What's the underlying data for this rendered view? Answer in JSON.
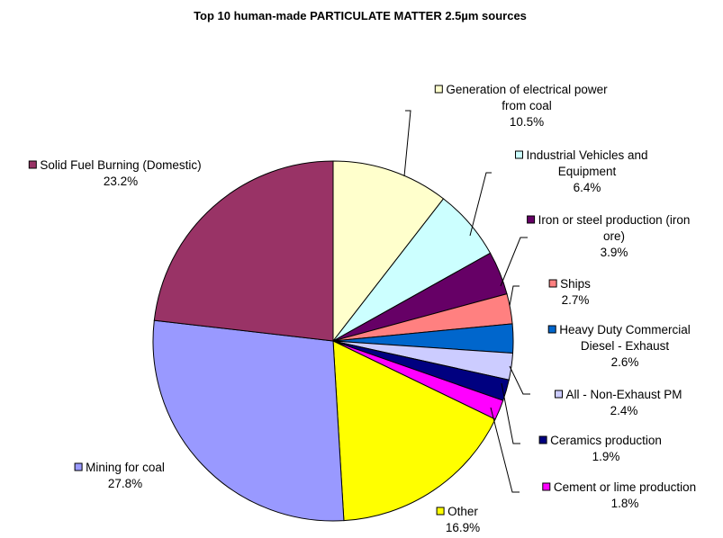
{
  "chart_data": {
    "type": "pie",
    "title": "Top 10 human-made PARTICULATE MATTER 2.5µm sources",
    "slices": [
      {
        "name": "Generation of electrical power from coal",
        "label_lines": [
          "Generation of electrical power",
          "from coal"
        ],
        "value": 10.5,
        "value_label": "10.5%",
        "color": "#FFFFCC"
      },
      {
        "name": "Industrial Vehicles and Equipment",
        "label_lines": [
          "Industrial Vehicles and",
          "Equipment"
        ],
        "value": 6.4,
        "value_label": "6.4%",
        "color": "#CCFFFF"
      },
      {
        "name": "Iron or steel production (iron ore)",
        "label_lines": [
          "Iron or steel production (iron",
          "ore)"
        ],
        "value": 3.9,
        "value_label": "3.9%",
        "color": "#660066"
      },
      {
        "name": "Ships",
        "label_lines": [
          "Ships"
        ],
        "value": 2.7,
        "value_label": "2.7%",
        "color": "#FF8080"
      },
      {
        "name": "Heavy Duty Commercial Diesel - Exhaust",
        "label_lines": [
          "Heavy Duty Commercial",
          "Diesel - Exhaust"
        ],
        "value": 2.6,
        "value_label": "2.6%",
        "color": "#0066CC"
      },
      {
        "name": "All - Non-Exhaust PM",
        "label_lines": [
          "All - Non-Exhaust PM"
        ],
        "value": 2.4,
        "value_label": "2.4%",
        "color": "#CCCCFF"
      },
      {
        "name": "Ceramics production",
        "label_lines": [
          "Ceramics production"
        ],
        "value": 1.9,
        "value_label": "1.9%",
        "color": "#000080"
      },
      {
        "name": "Cement or lime production",
        "label_lines": [
          "Cement or lime production"
        ],
        "value": 1.8,
        "value_label": "1.8%",
        "color": "#FF00FF"
      },
      {
        "name": "Other",
        "label_lines": [
          "Other"
        ],
        "value": 16.9,
        "value_label": "16.9%",
        "color": "#FFFF00"
      },
      {
        "name": "Mining for coal",
        "label_lines": [
          "Mining for coal"
        ],
        "value": 27.8,
        "value_label": "27.8%",
        "color": "#9999FF"
      },
      {
        "name": "Solid Fuel Burning (Domestic)",
        "label_lines": [
          "Solid Fuel Burning (Domestic)"
        ],
        "value": 23.2,
        "value_label": "23.2%",
        "color": "#993366"
      }
    ]
  }
}
